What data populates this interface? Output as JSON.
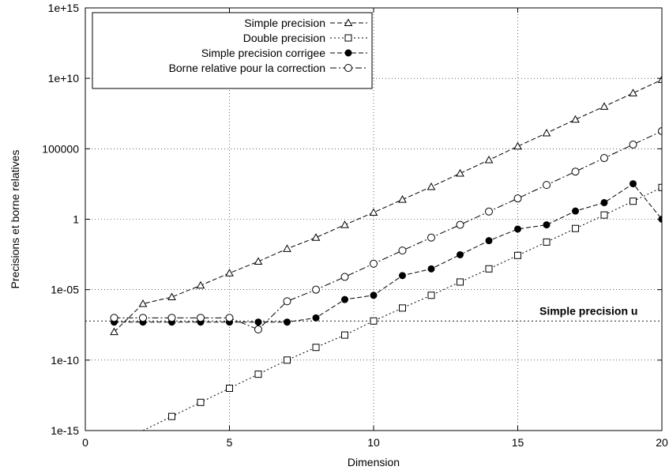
{
  "chart_data": {
    "type": "line",
    "title": "",
    "xlabel": "Dimension",
    "ylabel": "Precisions et borne relatives",
    "y_scale": "log",
    "xlim": [
      0,
      20
    ],
    "ylim": [
      1e-15,
      1000000000000000.0
    ],
    "grid": true,
    "legend_position": "top-left",
    "x_ticks": [
      {
        "value": 0,
        "label": "0"
      },
      {
        "value": 5,
        "label": "5"
      },
      {
        "value": 10,
        "label": "10"
      },
      {
        "value": 15,
        "label": "15"
      },
      {
        "value": 20,
        "label": "20"
      }
    ],
    "y_ticks": [
      {
        "value": 1e-15,
        "label": "1e-15"
      },
      {
        "value": 1e-10,
        "label": "1e-10"
      },
      {
        "value": 1e-05,
        "label": "1e-05"
      },
      {
        "value": 1,
        "label": "1"
      },
      {
        "value": 100000,
        "label": "100000"
      },
      {
        "value": 10000000000.0,
        "label": "1e+10"
      },
      {
        "value": 1000000000000000.0,
        "label": "1e+15"
      }
    ],
    "series": [
      {
        "name": "Simple precision",
        "marker": "triangle-open",
        "dash": "dashed",
        "x": [
          1,
          2,
          3,
          4,
          5,
          6,
          7,
          8,
          9,
          10,
          11,
          12,
          13,
          14,
          15,
          16,
          17,
          18,
          19,
          20
        ],
        "y": [
          1e-08,
          1e-06,
          3e-06,
          2e-05,
          0.00015,
          0.001,
          0.008,
          0.05,
          0.4,
          3,
          25.0,
          200.0,
          1800.0,
          16000.0,
          150000.0,
          1300000.0,
          12000000.0,
          100000000.0,
          900000000.0,
          8000000000.0
        ]
      },
      {
        "name": "Double precision",
        "marker": "square-open",
        "dash": "dotted",
        "x": [
          3,
          4,
          5,
          6,
          7,
          8,
          9,
          10,
          11,
          12,
          13,
          14,
          15,
          16,
          17,
          18,
          19,
          20
        ],
        "y": [
          1e-14,
          1e-13,
          1e-12,
          1e-11,
          1e-10,
          8e-10,
          6e-09,
          6e-08,
          5e-07,
          4e-06,
          3.5e-05,
          0.0003,
          0.0027,
          0.024,
          0.22,
          2.0,
          19.0,
          180.0
        ]
      },
      {
        "name": "Simple precision corrigee",
        "marker": "circle-filled",
        "dash": "dashed",
        "x": [
          1,
          2,
          3,
          4,
          5,
          6,
          7,
          8,
          9,
          10,
          11,
          12,
          13,
          14,
          15,
          16,
          17,
          18,
          19,
          20
        ],
        "y": [
          5e-08,
          5e-08,
          5e-08,
          5e-08,
          5e-08,
          5e-08,
          5e-08,
          1e-07,
          2e-06,
          4e-06,
          0.0001,
          0.0003,
          0.003,
          0.03,
          0.2,
          0.4,
          3.8,
          15.0,
          330.0,
          1.0
        ]
      },
      {
        "name": "Borne relative pour la correction",
        "marker": "circle-open",
        "dash": "dashdot",
        "x": [
          1,
          2,
          3,
          4,
          5,
          6,
          7,
          8,
          9,
          10,
          11,
          12,
          13,
          14,
          15,
          16,
          17,
          18,
          19,
          20
        ],
        "y": [
          1e-07,
          1e-07,
          1e-07,
          1e-07,
          1e-07,
          1.5e-08,
          1.5e-06,
          1e-05,
          8e-05,
          0.0007,
          0.006,
          0.05,
          0.4,
          3.5,
          30.0,
          270.0,
          2400.0,
          22000.0,
          200000.0,
          1800000.0
        ]
      }
    ],
    "reference_line": {
      "y": 6e-08,
      "label": "Simple precision u"
    }
  }
}
